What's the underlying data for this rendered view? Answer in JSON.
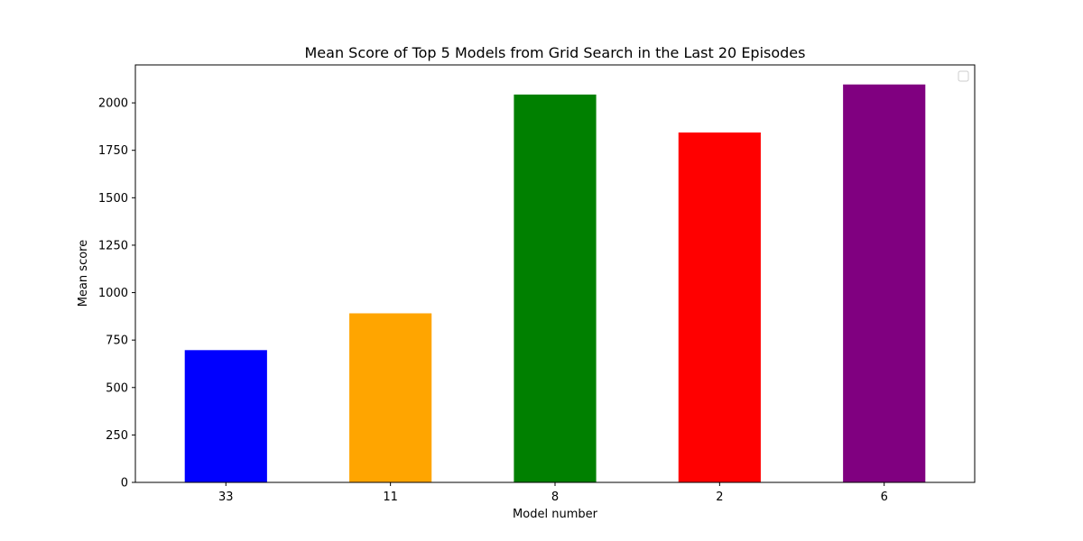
{
  "chart_data": {
    "type": "bar",
    "title": "Mean Score of Top 5 Models from Grid Search in the Last 20 Episodes",
    "xlabel": "Model number",
    "ylabel": "Mean score",
    "categories": [
      "33",
      "11",
      "8",
      "2",
      "6"
    ],
    "values": [
      697,
      891,
      2044,
      1844,
      2097
    ],
    "colors": [
      "#0000ff",
      "#ffa500",
      "#008000",
      "#ff0000",
      "#800080"
    ],
    "ylim": [
      0,
      2200
    ],
    "yticks": [
      0,
      250,
      500,
      750,
      1000,
      1250,
      1500,
      1750,
      2000
    ],
    "grid": false,
    "legend": {
      "placement": "top-right",
      "entries": []
    }
  }
}
